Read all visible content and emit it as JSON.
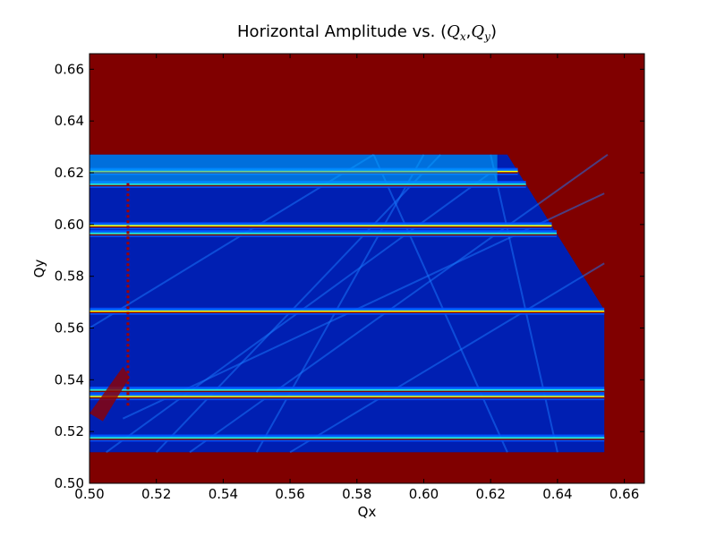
{
  "chart_data": {
    "type": "heatmap",
    "title": {
      "prefix": "Horizontal Amplitude vs. (",
      "var1": "Q",
      "sub1": "x",
      "sep": ",",
      "var2": "Q",
      "sub2": "y",
      "suffix": ")"
    },
    "xlabel": "Qx",
    "ylabel": "Qy",
    "xlim": [
      0.5,
      0.666
    ],
    "ylim": [
      0.5,
      0.666
    ],
    "xticks": [
      0.5,
      0.52,
      0.54,
      0.56,
      0.58,
      0.6,
      0.62,
      0.64,
      0.66
    ],
    "yticks": [
      0.5,
      0.52,
      0.54,
      0.56,
      0.58,
      0.6,
      0.62,
      0.64,
      0.66
    ],
    "xtick_labels": [
      "0.50",
      "0.52",
      "0.54",
      "0.56",
      "0.58",
      "0.60",
      "0.62",
      "0.64",
      "0.66"
    ],
    "ytick_labels": [
      "0.50",
      "0.52",
      "0.54",
      "0.56",
      "0.58",
      "0.60",
      "0.62",
      "0.64",
      "0.66"
    ],
    "colormap": "jet",
    "colors": {
      "saturated": "#800000",
      "low": "#00008f",
      "mid_low": "#0030ff",
      "mid": "#00a0ff",
      "mid_high": "#30ffcf",
      "high": "#ffff00",
      "orange": "#ff9000",
      "red": "#e00000"
    },
    "stable_region": {
      "qx_range": [
        0.5,
        0.654
      ],
      "qy_range": [
        0.512,
        0.627
      ],
      "diagonal_cut": [
        [
          0.625,
          0.627
        ],
        [
          0.654,
          0.567
        ]
      ]
    },
    "horizontal_resonances_qy": [
      0.5175,
      0.5335,
      0.536,
      0.5665,
      0.5965,
      0.5995,
      0.6155,
      0.6205
    ],
    "vertical_resonance_qx": [
      0.5115
    ]
  }
}
